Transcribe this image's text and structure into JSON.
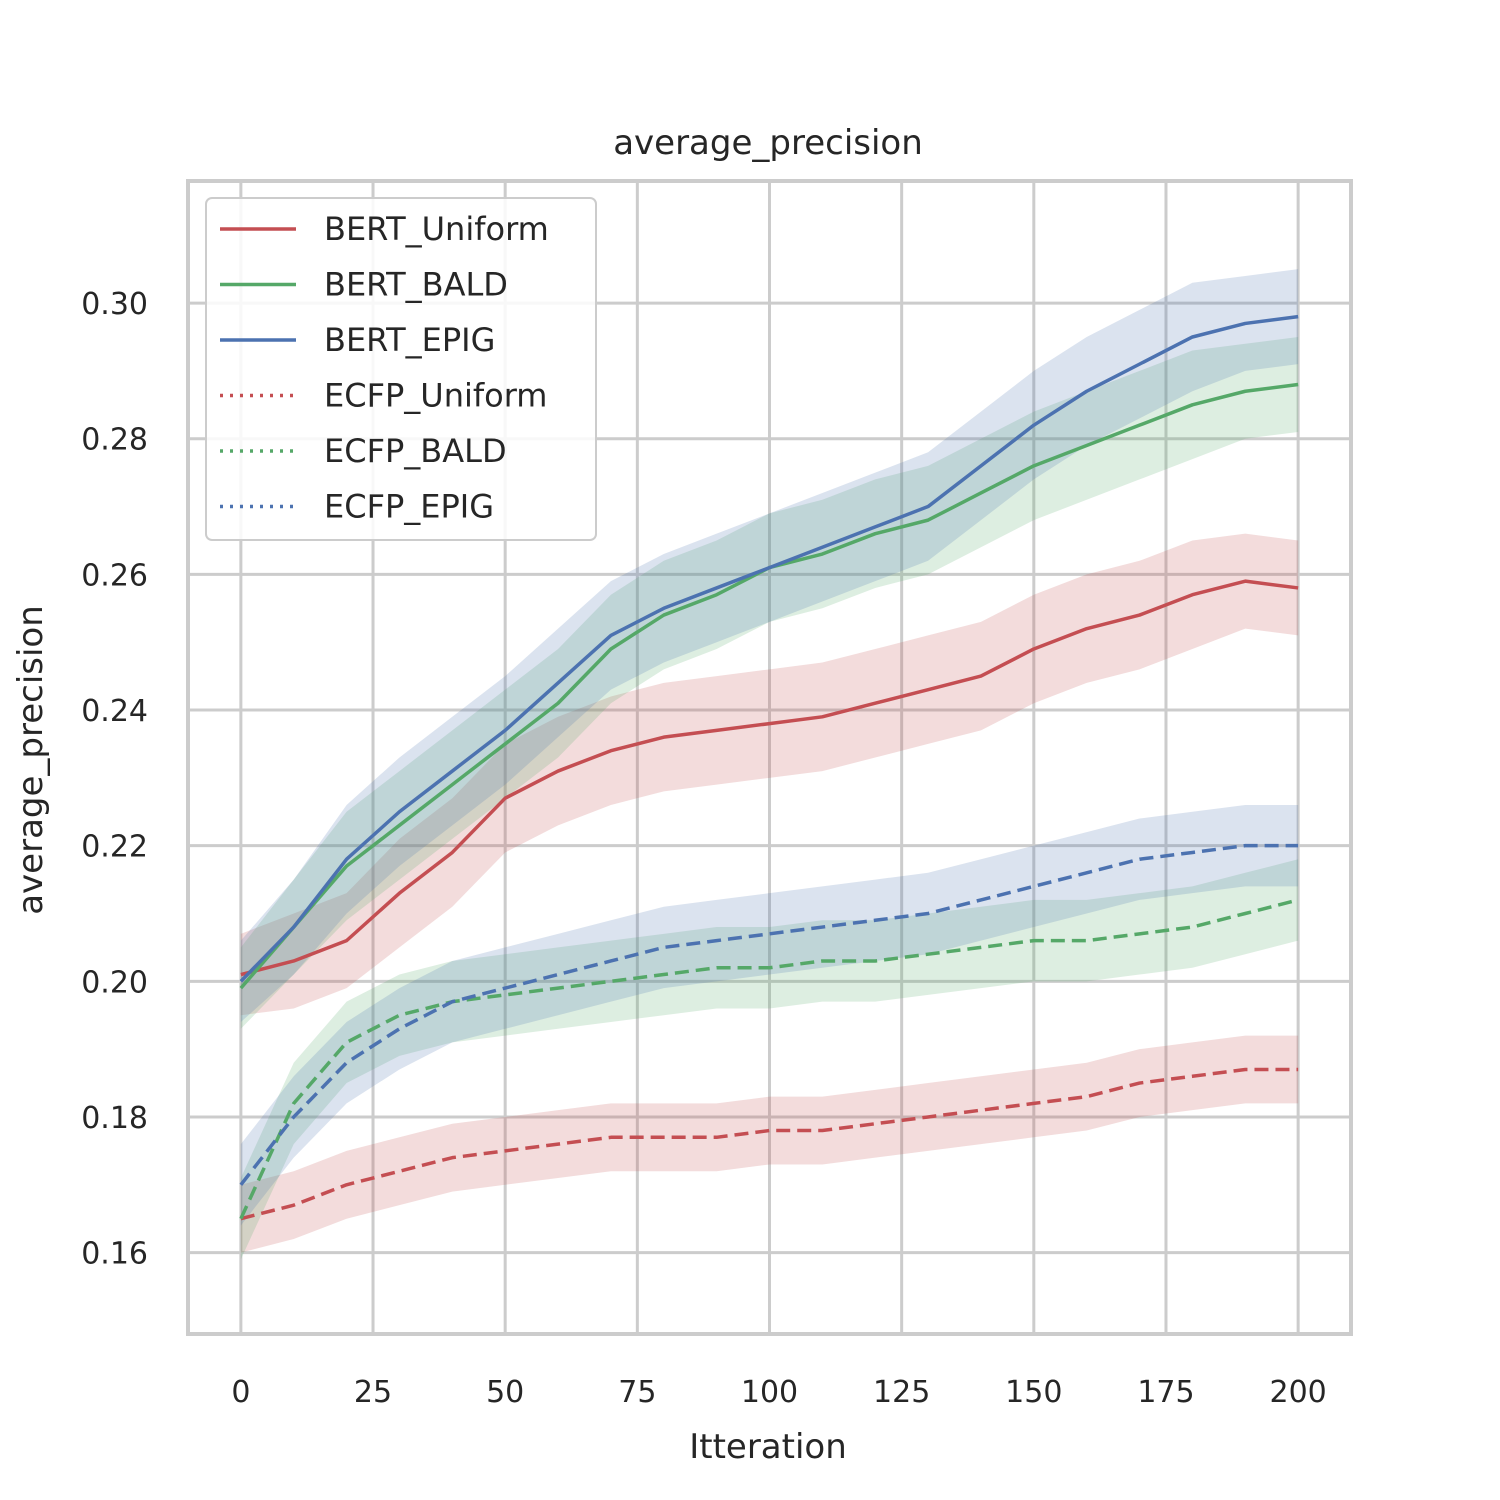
{
  "chart_data": {
    "type": "line",
    "title": "average_precision",
    "xlabel": "Itteration",
    "ylabel": "average_precision",
    "xlim": [
      -10,
      210
    ],
    "ylim": [
      0.148,
      0.318
    ],
    "xticks": [
      0,
      25,
      50,
      75,
      100,
      125,
      150,
      175,
      200
    ],
    "xtick_labels": [
      "0",
      "25",
      "50",
      "75",
      "100",
      "125",
      "150",
      "175",
      "200"
    ],
    "yticks": [
      0.16,
      0.18,
      0.2,
      0.22,
      0.24,
      0.26,
      0.28,
      0.3
    ],
    "ytick_labels": [
      "0.16",
      "0.18",
      "0.20",
      "0.22",
      "0.24",
      "0.26",
      "0.28",
      "0.30"
    ],
    "grid": true,
    "legend_position": "top-left",
    "legend": [
      "BERT_Uniform",
      "BERT_BALD",
      "BERT_EPIG",
      "ECFP_Uniform",
      "ECFP_BALD",
      "ECFP_EPIG"
    ],
    "series": [
      {
        "name": "BERT_Uniform",
        "color": "#c44e52",
        "style": "solid",
        "x": [
          0,
          10,
          20,
          30,
          40,
          50,
          60,
          70,
          80,
          90,
          100,
          110,
          120,
          130,
          140,
          150,
          160,
          170,
          180,
          190,
          200
        ],
        "y": [
          0.201,
          0.203,
          0.206,
          0.213,
          0.219,
          0.227,
          0.231,
          0.234,
          0.236,
          0.237,
          0.238,
          0.239,
          0.241,
          0.243,
          0.245,
          0.249,
          0.252,
          0.254,
          0.257,
          0.259,
          0.258
        ],
        "ci": [
          0.006,
          0.007,
          0.007,
          0.008,
          0.008,
          0.008,
          0.008,
          0.008,
          0.008,
          0.008,
          0.008,
          0.008,
          0.008,
          0.008,
          0.008,
          0.008,
          0.008,
          0.008,
          0.008,
          0.007,
          0.007
        ]
      },
      {
        "name": "BERT_BALD",
        "color": "#55a868",
        "style": "solid",
        "x": [
          0,
          10,
          20,
          30,
          40,
          50,
          60,
          70,
          80,
          90,
          100,
          110,
          120,
          130,
          140,
          150,
          160,
          170,
          180,
          190,
          200
        ],
        "y": [
          0.199,
          0.208,
          0.217,
          0.223,
          0.229,
          0.235,
          0.241,
          0.249,
          0.254,
          0.257,
          0.261,
          0.263,
          0.266,
          0.268,
          0.272,
          0.276,
          0.279,
          0.282,
          0.285,
          0.287,
          0.288
        ],
        "ci": [
          0.006,
          0.007,
          0.008,
          0.008,
          0.008,
          0.008,
          0.008,
          0.008,
          0.008,
          0.008,
          0.008,
          0.008,
          0.008,
          0.008,
          0.008,
          0.008,
          0.008,
          0.008,
          0.008,
          0.007,
          0.007
        ]
      },
      {
        "name": "BERT_EPIG",
        "color": "#4c72b0",
        "style": "solid",
        "x": [
          0,
          10,
          20,
          30,
          40,
          50,
          60,
          70,
          80,
          90,
          100,
          110,
          120,
          130,
          140,
          150,
          160,
          170,
          180,
          190,
          200
        ],
        "y": [
          0.2,
          0.208,
          0.218,
          0.225,
          0.231,
          0.237,
          0.244,
          0.251,
          0.255,
          0.258,
          0.261,
          0.264,
          0.267,
          0.27,
          0.276,
          0.282,
          0.287,
          0.291,
          0.295,
          0.297,
          0.298
        ],
        "ci": [
          0.006,
          0.007,
          0.008,
          0.008,
          0.008,
          0.008,
          0.008,
          0.008,
          0.008,
          0.008,
          0.008,
          0.008,
          0.008,
          0.008,
          0.008,
          0.008,
          0.008,
          0.008,
          0.008,
          0.007,
          0.007
        ]
      },
      {
        "name": "ECFP_Uniform",
        "color": "#c44e52",
        "style": "dashed",
        "x": [
          0,
          10,
          20,
          30,
          40,
          50,
          60,
          70,
          80,
          90,
          100,
          110,
          120,
          130,
          140,
          150,
          160,
          170,
          180,
          190,
          200
        ],
        "y": [
          0.165,
          0.167,
          0.17,
          0.172,
          0.174,
          0.175,
          0.176,
          0.177,
          0.177,
          0.177,
          0.178,
          0.178,
          0.179,
          0.18,
          0.181,
          0.182,
          0.183,
          0.185,
          0.186,
          0.187,
          0.187
        ],
        "ci": [
          0.005,
          0.005,
          0.005,
          0.005,
          0.005,
          0.005,
          0.005,
          0.005,
          0.005,
          0.005,
          0.005,
          0.005,
          0.005,
          0.005,
          0.005,
          0.005,
          0.005,
          0.005,
          0.005,
          0.005,
          0.005
        ]
      },
      {
        "name": "ECFP_BALD",
        "color": "#55a868",
        "style": "dashed",
        "x": [
          0,
          10,
          20,
          30,
          40,
          50,
          60,
          70,
          80,
          90,
          100,
          110,
          120,
          130,
          140,
          150,
          160,
          170,
          180,
          190,
          200
        ],
        "y": [
          0.165,
          0.182,
          0.191,
          0.195,
          0.197,
          0.198,
          0.199,
          0.2,
          0.201,
          0.202,
          0.202,
          0.203,
          0.203,
          0.204,
          0.205,
          0.206,
          0.206,
          0.207,
          0.208,
          0.21,
          0.212
        ],
        "ci": [
          0.006,
          0.006,
          0.006,
          0.006,
          0.006,
          0.006,
          0.006,
          0.006,
          0.006,
          0.006,
          0.006,
          0.006,
          0.006,
          0.006,
          0.006,
          0.006,
          0.006,
          0.006,
          0.006,
          0.006,
          0.006
        ]
      },
      {
        "name": "ECFP_EPIG",
        "color": "#4c72b0",
        "style": "dashed",
        "x": [
          0,
          10,
          20,
          30,
          40,
          50,
          60,
          70,
          80,
          90,
          100,
          110,
          120,
          130,
          140,
          150,
          160,
          170,
          180,
          190,
          200
        ],
        "y": [
          0.17,
          0.18,
          0.188,
          0.193,
          0.197,
          0.199,
          0.201,
          0.203,
          0.205,
          0.206,
          0.207,
          0.208,
          0.209,
          0.21,
          0.212,
          0.214,
          0.216,
          0.218,
          0.219,
          0.22,
          0.22
        ],
        "ci": [
          0.006,
          0.006,
          0.006,
          0.006,
          0.006,
          0.006,
          0.006,
          0.006,
          0.006,
          0.006,
          0.006,
          0.006,
          0.006,
          0.006,
          0.006,
          0.006,
          0.006,
          0.006,
          0.006,
          0.006,
          0.006
        ]
      }
    ]
  }
}
